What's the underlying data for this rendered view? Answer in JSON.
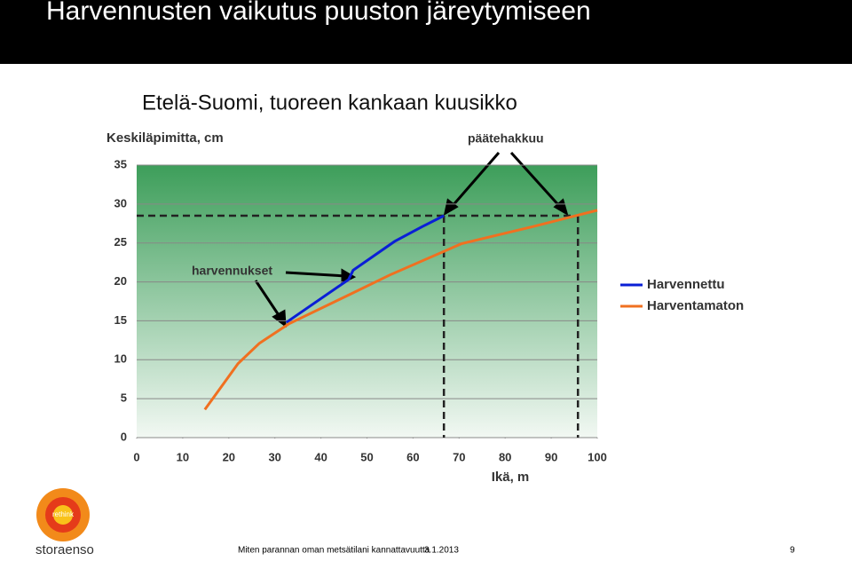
{
  "slide": {
    "title": "Harvennusten vaikutus puuston järeytymiseen",
    "footer": "Miten parannan oman metsätilani kannattavuutta",
    "date": "3.1.2013",
    "page": "9",
    "logo_name": "storaenso",
    "logo_tag": "rethink"
  },
  "chart_data": {
    "type": "line",
    "title": "Etelä-Suomi, tuoreen kankaan kuusikko",
    "y_label": "Keskiläpimitta, cm",
    "x_label": "Ikä, m",
    "xlim": [
      0,
      100
    ],
    "xticks": [
      0,
      10,
      20,
      30,
      40,
      50,
      60,
      70,
      80,
      90,
      100
    ],
    "ylim": [
      0,
      35
    ],
    "yticks": [
      0,
      5,
      10,
      15,
      20,
      25,
      30,
      35
    ],
    "grid": true,
    "series": [
      {
        "name": "Harvennettu",
        "color": "#0a1fd6",
        "x": [
          32.5,
          46,
          47,
          56,
          62,
          66.7
        ],
        "values": [
          14.8,
          20.3,
          21.5,
          25.2,
          27.1,
          28.5
        ]
      },
      {
        "name": "Harventamaton",
        "color": "#f07020",
        "x": [
          14.8,
          22,
          26.6,
          33,
          47,
          55,
          70.5,
          86,
          100
        ],
        "values": [
          3.6,
          9.5,
          12.1,
          14.6,
          18.6,
          20.9,
          24.9,
          27.1,
          29.2
        ]
      }
    ],
    "ref_y": 28.5,
    "ref_x": [
      66.7,
      95.8
    ],
    "annotations": [
      "päätehakkuu",
      "harvennukset"
    ],
    "legend": "right"
  }
}
